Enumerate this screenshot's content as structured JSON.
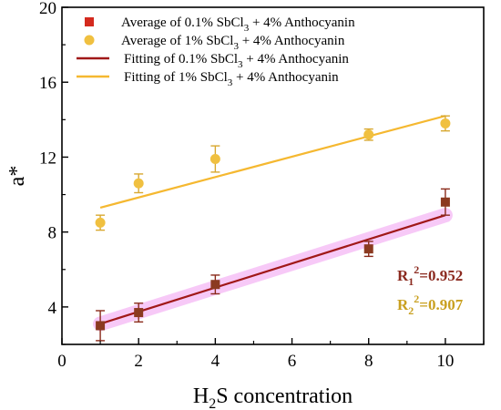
{
  "chart_data": {
    "type": "scatter",
    "xlabel": "H2S concentration",
    "xlabel_main": "H",
    "xlabel_sub": "2",
    "xlabel_rest": "S concentration",
    "ylabel": "a*",
    "xlim": [
      0,
      11
    ],
    "ylim": [
      2,
      20
    ],
    "xticks": [
      "0",
      "2",
      "4",
      "6",
      "8",
      "10"
    ],
    "yticks": [
      "4",
      "8",
      "12",
      "16",
      "20"
    ],
    "legend_position": "top-left",
    "series": [
      {
        "name": "Average of 0.1% SbCl3 + 4% Anthocyanin",
        "legend": {
          "pre": "Average of 0.1% SbCl",
          "sub": "3",
          "post": " + 4% Anthocyanin"
        },
        "kind": "points",
        "marker": "square",
        "color": "#b22b1f",
        "x": [
          1,
          2,
          4,
          8,
          10
        ],
        "y": [
          3.0,
          3.7,
          5.2,
          7.1,
          9.6
        ],
        "err": [
          0.8,
          0.5,
          0.5,
          0.4,
          0.7
        ]
      },
      {
        "name": "Average of 1% SbCl3 + 4% Anthocyanin",
        "legend": {
          "pre": "Average of 1% SbCl",
          "sub": "3",
          "post": " + 4% Anthocyanin"
        },
        "kind": "points",
        "marker": "circle",
        "color": "#f0c040",
        "x": [
          1,
          2,
          4,
          8,
          10
        ],
        "y": [
          8.5,
          10.6,
          11.9,
          13.2,
          13.8
        ],
        "err": [
          0.4,
          0.5,
          0.7,
          0.3,
          0.4
        ]
      },
      {
        "name": "Fitting of 0.1% SbCl3 + 4% Anthocyanin",
        "legend": {
          "pre": "Fitting of 0.1% SbCl",
          "sub": "3",
          "post": " + 4% Anthocyanin"
        },
        "kind": "line",
        "color": "#a01818",
        "x": [
          1,
          10
        ],
        "y": [
          3.1,
          8.9
        ]
      },
      {
        "name": "Fitting of 1% SbCl3 + 4% Anthocyanin",
        "legend": {
          "pre": "Fitting of 1% SbCl",
          "sub": "3",
          "post": " + 4% Anthocyanin"
        },
        "kind": "line",
        "color": "#f5b830",
        "x": [
          1,
          10
        ],
        "y": [
          9.3,
          14.2
        ]
      }
    ],
    "annotations": [
      {
        "pre": "R",
        "sub": "1",
        "sup": "2",
        "post": "=0.952",
        "color": "#8b2a1f"
      },
      {
        "pre": "R",
        "sub": "2",
        "sup": "2",
        "post": "=0.907",
        "color": "#c9a020"
      }
    ],
    "highlight_color": "#ee88ee"
  }
}
